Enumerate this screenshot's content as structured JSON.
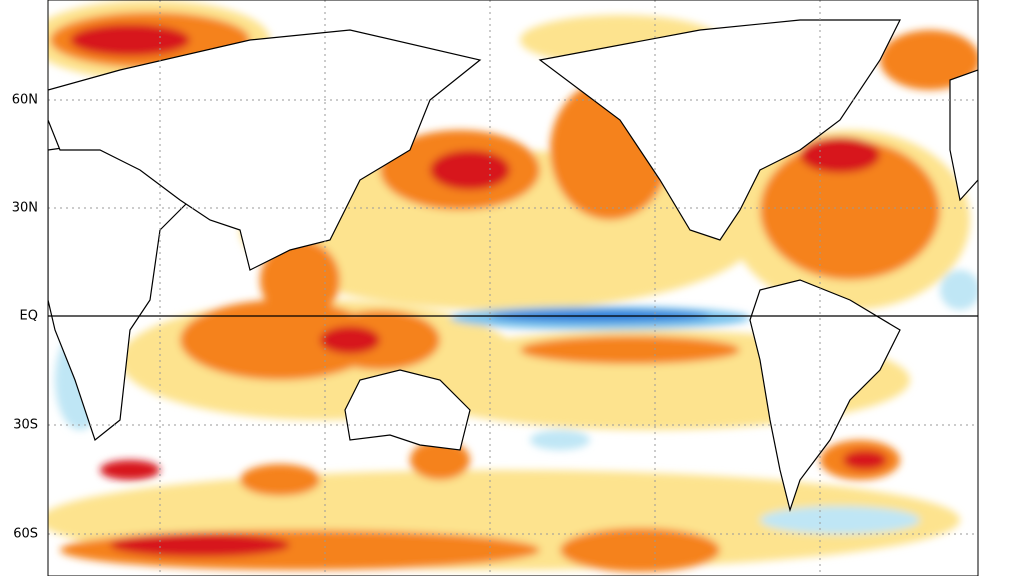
{
  "map": {
    "lat_labels": [
      "60N",
      "30N",
      "EQ",
      "30S",
      "60S"
    ]
  }
}
